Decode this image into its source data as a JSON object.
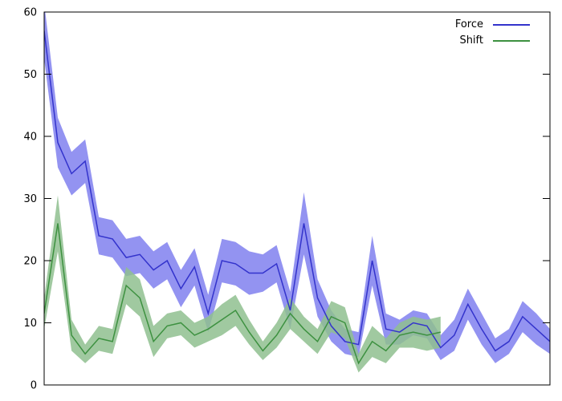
{
  "chart_data": {
    "type": "line",
    "title": "",
    "xlabel": "",
    "ylabel": "",
    "ylim": [
      0,
      60
    ],
    "yticks": [
      0,
      10,
      20,
      30,
      40,
      50,
      60
    ],
    "grid": false,
    "legend_position": "top-right-inside",
    "series": [
      {
        "name": "Force",
        "color": "#3333cc",
        "band_color": "#8080ee",
        "values": [
          57,
          39,
          34,
          36,
          24,
          23.5,
          20.5,
          21,
          18.5,
          20,
          15.5,
          19,
          11.5,
          20,
          19.5,
          18,
          18,
          19.5,
          12,
          26,
          14,
          9.5,
          7,
          6.5,
          20,
          9,
          8.5,
          10,
          9.5,
          6,
          8,
          13,
          9,
          5.5,
          7,
          11,
          9,
          7
        ],
        "err": [
          4.5,
          4,
          3.5,
          3.5,
          3,
          3,
          3,
          3,
          3,
          3,
          3,
          3,
          3,
          3.5,
          3.5,
          3.5,
          3,
          3,
          3,
          5,
          3,
          2.5,
          2,
          2,
          4,
          2.5,
          2,
          2,
          2,
          2,
          2.5,
          2.5,
          2.5,
          2,
          2,
          2.5,
          2.5,
          2
        ]
      },
      {
        "name": "Shift",
        "color": "#3d9140",
        "band_color": "#8fc08f",
        "values": [
          11.5,
          26,
          8,
          5,
          7.5,
          7,
          16,
          14,
          7,
          9.5,
          10,
          8,
          9,
          10.5,
          12,
          8.5,
          5.5,
          8,
          11.5,
          9,
          7,
          11,
          10,
          3.5,
          7,
          5.5,
          8,
          8.5,
          8,
          8.5
        ],
        "err": [
          2.5,
          4.5,
          2.5,
          1.5,
          2,
          2,
          3,
          3,
          2.5,
          2,
          2,
          2,
          2,
          2.5,
          2.5,
          2,
          1.5,
          2,
          2.5,
          2,
          2,
          2.5,
          2.5,
          1.5,
          2.5,
          2,
          2,
          2.5,
          2.5,
          2.5
        ]
      }
    ]
  }
}
